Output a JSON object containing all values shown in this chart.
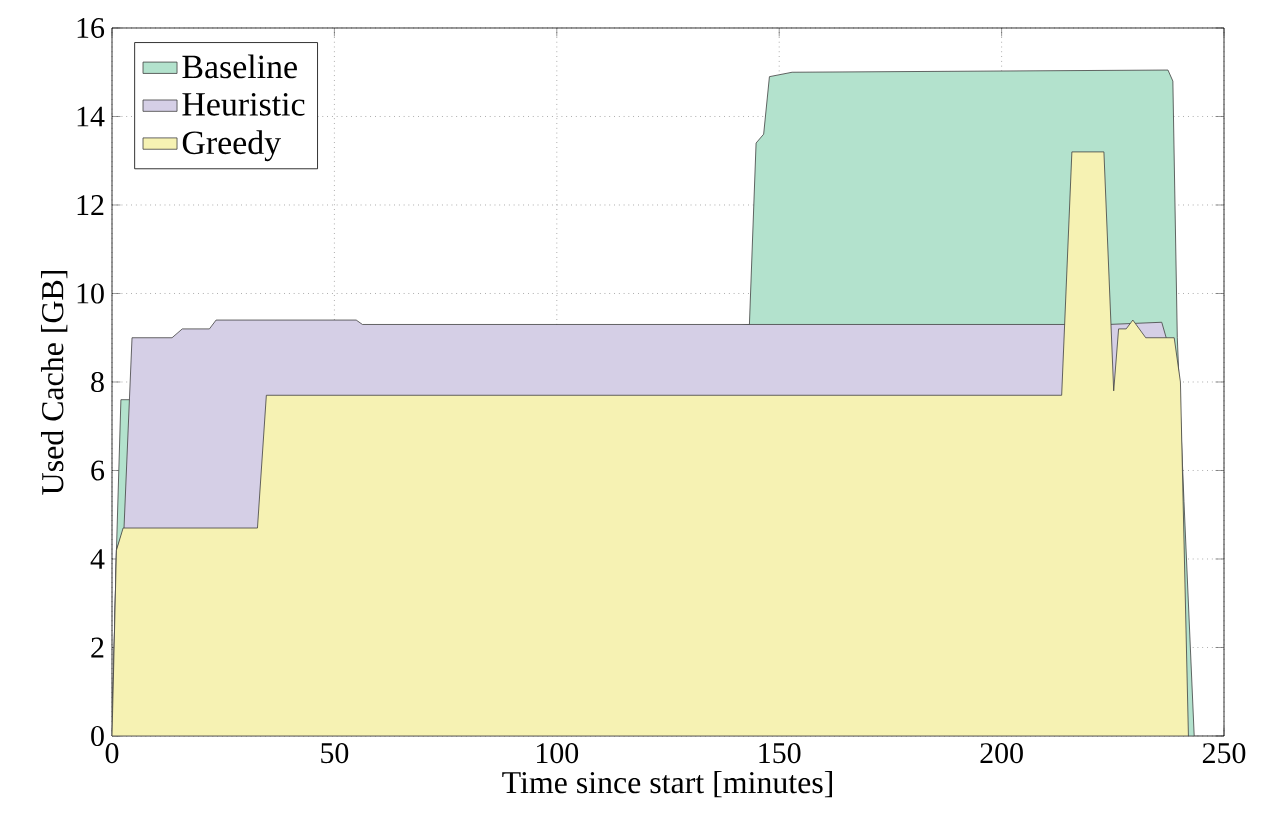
{
  "chart_data": {
    "type": "area",
    "xlabel": "Time since start [minutes]",
    "ylabel": "Used Cache [GB]",
    "xlim": [
      0,
      250
    ],
    "ylim": [
      0,
      16
    ],
    "xticks": [
      0,
      50,
      100,
      150,
      200,
      250
    ],
    "yticks": [
      0,
      2,
      4,
      6,
      8,
      10,
      12,
      14,
      16
    ],
    "grid": true,
    "legend": "top left",
    "series": [
      {
        "name": "Baseline",
        "color": "#b3e2cd",
        "x": [
          0,
          1,
          2,
          4,
          143.3,
          144.8,
          146.5,
          147.8,
          152.9,
          237.4,
          238.5,
          239.5,
          241,
          243.3
        ],
        "values": [
          0,
          4.2,
          7.6,
          7.6,
          9.3,
          13.4,
          13.6,
          14.9,
          15.0,
          15.05,
          14.8,
          9.0,
          5.3,
          0
        ]
      },
      {
        "name": "Heuristic",
        "color": "#d5cfe6",
        "x": [
          0,
          1,
          2.7,
          4.5,
          13.5,
          15.8,
          21.9,
          23.4,
          54.9,
          56.3,
          214.6,
          224,
          236,
          237,
          241.5
        ],
        "values": [
          0,
          4.2,
          4.7,
          9.0,
          9.0,
          9.2,
          9.2,
          9.4,
          9.4,
          9.3,
          9.3,
          9.3,
          9.35,
          9.0,
          0
        ]
      },
      {
        "name": "Greedy",
        "color": "#f6f2b3",
        "x": [
          0,
          1,
          2.5,
          32.7,
          34.7,
          213.5,
          215.8,
          223,
          225.2,
          226.3,
          228,
          229.5,
          232.4,
          238.8,
          240.2,
          242
        ],
        "values": [
          0,
          4.2,
          4.7,
          4.7,
          7.7,
          7.7,
          13.2,
          13.2,
          7.8,
          9.2,
          9.2,
          9.4,
          9.0,
          9.0,
          8.0,
          0
        ]
      }
    ]
  }
}
